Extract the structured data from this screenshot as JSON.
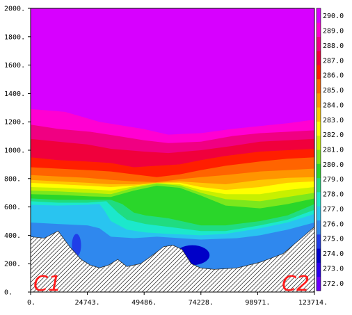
{
  "chart_data": {
    "type": "heatmap",
    "title": "",
    "xlabel": "",
    "ylabel": "",
    "xlim": [
      0,
      123714
    ],
    "ylim": [
      0,
      2000
    ],
    "x_ticks": [
      "0.",
      "24743.",
      "49486.",
      "74228.",
      "98971.",
      "123714."
    ],
    "y_ticks": [
      "0.",
      "200.",
      "400.",
      "600.",
      "800.",
      "1000.",
      "1200.",
      "1400.",
      "1600.",
      "1800.",
      "2000."
    ],
    "colorbar": {
      "placement": "right",
      "range": [
        271.5,
        290.5
      ],
      "labels": [
        "272.0",
        "273.0",
        "274.0",
        "275.0",
        "276.0",
        "277.0",
        "278.0",
        "279.0",
        "280.0",
        "281.0",
        "282.0",
        "283.0",
        "284.0",
        "285.0",
        "286.0",
        "287.0",
        "288.0",
        "289.0",
        "290.0"
      ],
      "colors": [
        "#6a00ff",
        "#2a00ee",
        "#0000c8",
        "#1f3ee8",
        "#2f88ee",
        "#29c4f0",
        "#1ce8cc",
        "#20dc80",
        "#2ad62a",
        "#7ce81c",
        "#c8f000",
        "#ffff00",
        "#ffc800",
        "#ff9500",
        "#ff6400",
        "#ff1e00",
        "#f0003c",
        "#f00082",
        "#ff00d2",
        "#d700ff"
      ]
    },
    "levels": [
      {
        "level": 290.5,
        "color": "#d700ff",
        "boundary": [
          [
            0,
            1340
          ],
          [
            12000,
            1320
          ],
          [
            30000,
            1270
          ],
          [
            49000,
            1200
          ],
          [
            60000,
            1160
          ],
          [
            74228,
            1160
          ],
          [
            85000,
            1180
          ],
          [
            100000,
            1210
          ],
          [
            112000,
            1240
          ],
          [
            123714,
            1270
          ]
        ]
      },
      {
        "level": 290.0,
        "color": "#ff00d2",
        "boundary": [
          [
            0,
            1290
          ],
          [
            15000,
            1270
          ],
          [
            30000,
            1200
          ],
          [
            49000,
            1150
          ],
          [
            60000,
            1110
          ],
          [
            74228,
            1120
          ],
          [
            88000,
            1150
          ],
          [
            100000,
            1170
          ],
          [
            112000,
            1190
          ],
          [
            123714,
            1215
          ]
        ]
      },
      {
        "level": 289.0,
        "color": "#f00082",
        "boundary": [
          [
            0,
            1180
          ],
          [
            12000,
            1150
          ],
          [
            26000,
            1130
          ],
          [
            38000,
            1100
          ],
          [
            49486,
            1070
          ],
          [
            60000,
            1050
          ],
          [
            74228,
            1060
          ],
          [
            88000,
            1100
          ],
          [
            100000,
            1120
          ],
          [
            112000,
            1130
          ],
          [
            123714,
            1140
          ]
        ]
      },
      {
        "level": 288.0,
        "color": "#f0003c",
        "boundary": [
          [
            0,
            1080
          ],
          [
            12000,
            1060
          ],
          [
            24743,
            1040
          ],
          [
            35000,
            1010
          ],
          [
            49486,
            990
          ],
          [
            60000,
            980
          ],
          [
            74228,
            1000
          ],
          [
            88000,
            1030
          ],
          [
            100000,
            1060
          ],
          [
            112000,
            1070
          ],
          [
            123714,
            1080
          ]
        ]
      },
      {
        "level": 287.0,
        "color": "#ff1e00",
        "boundary": [
          [
            0,
            950
          ],
          [
            12000,
            930
          ],
          [
            24743,
            920
          ],
          [
            35000,
            910
          ],
          [
            45000,
            880
          ],
          [
            55000,
            890
          ],
          [
            65000,
            900
          ],
          [
            74228,
            930
          ],
          [
            85000,
            960
          ],
          [
            100000,
            990
          ],
          [
            112000,
            1000
          ],
          [
            123714,
            1010
          ]
        ]
      },
      {
        "level": 286.0,
        "color": "#ff6400",
        "boundary": [
          [
            0,
            880
          ],
          [
            12000,
            870
          ],
          [
            24743,
            860
          ],
          [
            35000,
            850
          ],
          [
            45000,
            830
          ],
          [
            55000,
            810
          ],
          [
            65000,
            830
          ],
          [
            74228,
            860
          ],
          [
            85000,
            890
          ],
          [
            100000,
            920
          ],
          [
            112000,
            940
          ],
          [
            123714,
            950
          ]
        ]
      },
      {
        "level": 285.0,
        "color": "#ff9500",
        "boundary": [
          [
            0,
            825
          ],
          [
            12000,
            815
          ],
          [
            24743,
            805
          ],
          [
            35000,
            790
          ],
          [
            45000,
            780
          ],
          [
            55000,
            775
          ],
          [
            65000,
            795
          ],
          [
            74228,
            810
          ],
          [
            85000,
            825
          ],
          [
            100000,
            850
          ],
          [
            112000,
            860
          ],
          [
            123714,
            870
          ]
        ]
      },
      {
        "level": 284.0,
        "color": "#ffc800",
        "boundary": [
          [
            0,
            790
          ],
          [
            12000,
            780
          ],
          [
            24743,
            770
          ],
          [
            35000,
            760
          ],
          [
            45000,
            760
          ],
          [
            55000,
            770
          ],
          [
            65000,
            780
          ],
          [
            74228,
            770
          ],
          [
            85000,
            760
          ],
          [
            100000,
            790
          ],
          [
            112000,
            805
          ],
          [
            123714,
            810
          ]
        ]
      },
      {
        "level": 283.0,
        "color": "#ffff00",
        "boundary": [
          [
            0,
            770
          ],
          [
            12000,
            760
          ],
          [
            24743,
            750
          ],
          [
            35000,
            740
          ],
          [
            45000,
            750
          ],
          [
            55000,
            770
          ],
          [
            65000,
            770
          ],
          [
            74228,
            740
          ],
          [
            85000,
            720
          ],
          [
            100000,
            740
          ],
          [
            112000,
            770
          ],
          [
            123714,
            780
          ]
        ]
      },
      {
        "level": 282.0,
        "color": "#c8f000",
        "boundary": [
          [
            0,
            740
          ],
          [
            12000,
            735
          ],
          [
            24743,
            725
          ],
          [
            35000,
            715
          ],
          [
            45000,
            745
          ],
          [
            55000,
            770
          ],
          [
            65000,
            760
          ],
          [
            74228,
            720
          ],
          [
            85000,
            690
          ],
          [
            100000,
            690
          ],
          [
            112000,
            720
          ],
          [
            123714,
            740
          ]
        ]
      },
      {
        "level": 281.0,
        "color": "#7ce81c",
        "boundary": [
          [
            0,
            715
          ],
          [
            12000,
            710
          ],
          [
            24743,
            700
          ],
          [
            35000,
            690
          ],
          [
            45000,
            735
          ],
          [
            55000,
            765
          ],
          [
            65000,
            750
          ],
          [
            74228,
            700
          ],
          [
            85000,
            655
          ],
          [
            100000,
            640
          ],
          [
            112000,
            670
          ],
          [
            123714,
            700
          ]
        ]
      },
      {
        "level": 280.0,
        "color": "#2ad62a",
        "boundary": [
          [
            0,
            690
          ],
          [
            12000,
            685
          ],
          [
            24743,
            675
          ],
          [
            35000,
            670
          ],
          [
            45000,
            715
          ],
          [
            55000,
            750
          ],
          [
            65000,
            735
          ],
          [
            74228,
            680
          ],
          [
            85000,
            610
          ],
          [
            100000,
            590
          ],
          [
            112000,
            620
          ],
          [
            123714,
            660
          ]
        ]
      },
      {
        "level": 279.0,
        "color": "#20dc80",
        "boundary": [
          [
            0,
            660
          ],
          [
            12000,
            650
          ],
          [
            24743,
            650
          ],
          [
            35000,
            650
          ],
          [
            40000,
            620
          ],
          [
            45000,
            560
          ],
          [
            50000,
            540
          ],
          [
            60000,
            520
          ],
          [
            74228,
            470
          ],
          [
            85000,
            470
          ],
          [
            100000,
            500
          ],
          [
            112000,
            540
          ],
          [
            123714,
            620
          ]
        ]
      },
      {
        "level": 278.0,
        "color": "#1ce8cc",
        "boundary": [
          [
            0,
            640
          ],
          [
            12000,
            630
          ],
          [
            24743,
            630
          ],
          [
            33000,
            640
          ],
          [
            38000,
            560
          ],
          [
            42000,
            510
          ],
          [
            50000,
            480
          ],
          [
            60000,
            460
          ],
          [
            74228,
            430
          ],
          [
            85000,
            430
          ],
          [
            100000,
            470
          ],
          [
            112000,
            510
          ],
          [
            123714,
            580
          ]
        ]
      },
      {
        "level": 277.0,
        "color": "#29c4f0",
        "boundary": [
          [
            0,
            615
          ],
          [
            12000,
            610
          ],
          [
            24743,
            615
          ],
          [
            30000,
            620
          ],
          [
            32000,
            580
          ],
          [
            35000,
            500
          ],
          [
            42000,
            440
          ],
          [
            50000,
            420
          ],
          [
            60000,
            410
          ],
          [
            74228,
            400
          ],
          [
            85000,
            410
          ],
          [
            100000,
            450
          ],
          [
            112000,
            490
          ],
          [
            123714,
            550
          ]
        ]
      },
      {
        "level": 276.0,
        "color": "#2f88ee",
        "boundary": [
          [
            0,
            490
          ],
          [
            12000,
            480
          ],
          [
            24743,
            470
          ],
          [
            30000,
            450
          ],
          [
            35000,
            390
          ],
          [
            45000,
            380
          ],
          [
            55000,
            390
          ],
          [
            65000,
            380
          ],
          [
            74228,
            370
          ],
          [
            90000,
            380
          ],
          [
            100000,
            400
          ],
          [
            112000,
            440
          ],
          [
            123714,
            490
          ]
        ]
      },
      {
        "level": 275.0,
        "color": "#1f3ee8",
        "boundary": [
          [
            0,
            0
          ],
          [
            123714,
            0
          ]
        ]
      }
    ],
    "lows": [
      {
        "center": [
          20000,
          330
        ],
        "radius": [
          2000,
          80
        ],
        "color": "#1f3ee8"
      },
      {
        "center": [
          70500,
          260
        ],
        "radius": [
          7500,
          70
        ],
        "color": "#0000c8"
      }
    ],
    "terrain": [
      [
        0,
        390
      ],
      [
        6000,
        380
      ],
      [
        12000,
        430
      ],
      [
        17000,
        320
      ],
      [
        22000,
        230
      ],
      [
        26000,
        190
      ],
      [
        30000,
        170
      ],
      [
        34000,
        190
      ],
      [
        38000,
        230
      ],
      [
        42000,
        180
      ],
      [
        48000,
        200
      ],
      [
        54000,
        270
      ],
      [
        58000,
        320
      ],
      [
        62000,
        330
      ],
      [
        66000,
        300
      ],
      [
        70000,
        200
      ],
      [
        74000,
        170
      ],
      [
        80000,
        160
      ],
      [
        90000,
        170
      ],
      [
        100000,
        210
      ],
      [
        110000,
        270
      ],
      [
        118000,
        380
      ],
      [
        123714,
        460
      ]
    ],
    "annotations": [
      "C1",
      "C2"
    ]
  }
}
